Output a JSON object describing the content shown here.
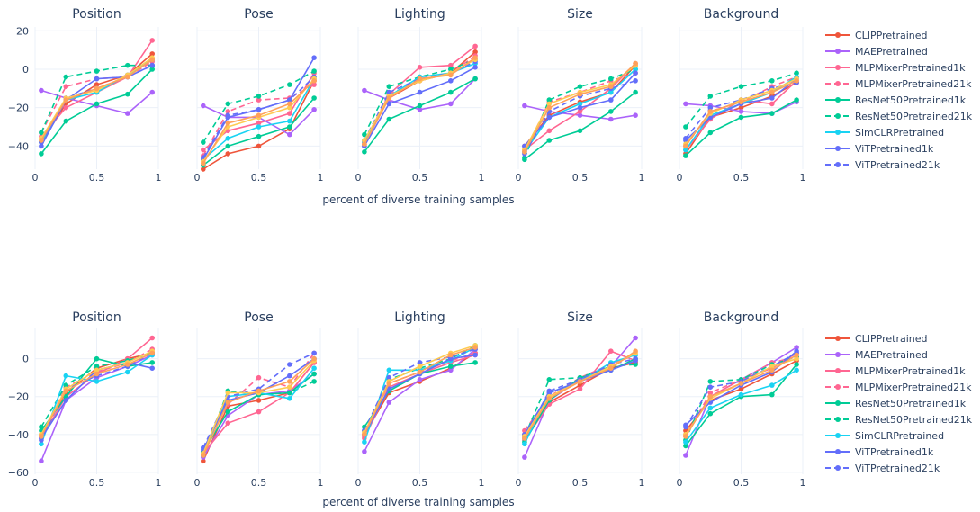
{
  "chart_data": {
    "type": "line",
    "xlabel": "percent of diverse training samples",
    "x_ticks": [
      0,
      0.5,
      1
    ],
    "x_tick_labels": [
      "0",
      "0.5",
      "1"
    ],
    "xlim": [
      0,
      1
    ],
    "x": [
      0.05,
      0.25,
      0.5,
      0.75,
      0.95
    ],
    "panels": [
      "Position",
      "Pose",
      "Lighting",
      "Size",
      "Background"
    ],
    "legend_placement": "right",
    "series_meta": [
      {
        "name": "CLIPPretrained",
        "color": "#ef553b",
        "dash": "solid"
      },
      {
        "name": "MAEPretrained",
        "color": "#ab63fa",
        "dash": "solid"
      },
      {
        "name": "MLPMixerPretrained1k",
        "color": "#ff6692",
        "dash": "solid"
      },
      {
        "name": "MLPMixerPretrained21k",
        "color": "#ff6692",
        "dash": "dash"
      },
      {
        "name": "ResNet50Pretrained1k",
        "color": "#00cc96",
        "dash": "solid"
      },
      {
        "name": "ResNet50Pretrained21k",
        "color": "#00cc96",
        "dash": "dash"
      },
      {
        "name": "SimCLRPretrained",
        "color": "#19d3f3",
        "dash": "solid"
      },
      {
        "name": "ViTPretrained1k",
        "color": "#636efa",
        "dash": "solid"
      },
      {
        "name": "ViTPretrained21k",
        "color": "#636efa",
        "dash": "dash"
      },
      {
        "name": "",
        "color": "#fecb52",
        "dash": "solid"
      },
      {
        "name": "",
        "color": "#ffa15a",
        "dash": "solid"
      }
    ],
    "rows": [
      {
        "ylim": [
          -52,
          22
        ],
        "y_ticks": [
          20,
          0,
          -20,
          -40
        ],
        "y_tick_labels": [
          "20",
          "0",
          "−20",
          "−40"
        ],
        "legend": [
          "CLIPPretrained",
          "MAEPretrained",
          "MLPMixerPretrained1k",
          "MLPMixerPretrained21k",
          "ResNet50Pretrained1k",
          "ResNet50Pretrained21k",
          "SimCLRPretrained",
          "ViTPretrained1k",
          "ViTPretrained21k"
        ],
        "subplots": [
          {
            "series": [
              [
                -38,
                -18,
                -8,
                -3,
                8
              ],
              [
                -11,
                -15,
                -19,
                -23,
                -12
              ],
              [
                -35,
                -20,
                -12,
                -4,
                15
              ],
              [
                -33,
                -9,
                -5,
                -4,
                4
              ],
              [
                -44,
                -27,
                -18,
                -13,
                0
              ],
              [
                -33,
                -4,
                -1,
                2,
                2
              ],
              [
                -38,
                -16,
                -12,
                -3,
                5
              ],
              [
                -40,
                -16,
                -5,
                -4,
                2
              ],
              [
                -38,
                -15,
                -10,
                -4,
                2
              ],
              [
                -36,
                -15,
                -11,
                -3,
                6
              ],
              [
                -37,
                -16,
                -10,
                -4,
                5
              ]
            ]
          },
          {
            "series": [
              [
                -52,
                -44,
                -40,
                -31,
                -6
              ],
              [
                -19,
                -25,
                -25,
                -34,
                -21
              ],
              [
                -42,
                -32,
                -28,
                -23,
                -2
              ],
              [
                -45,
                -22,
                -16,
                -15,
                -8
              ],
              [
                -50,
                -40,
                -35,
                -30,
                -15
              ],
              [
                -38,
                -18,
                -14,
                -8,
                -1
              ],
              [
                -47,
                -36,
                -30,
                -27,
                -5
              ],
              [
                -47,
                -25,
                -21,
                -16,
                6
              ],
              [
                -46,
                -24,
                -21,
                -16,
                -4
              ],
              [
                -48,
                -30,
                -25,
                -20,
                -5
              ],
              [
                -49,
                -28,
                -24,
                -18,
                -6
              ]
            ]
          },
          {
            "series": [
              [
                -39,
                -15,
                -6,
                -2,
                9
              ],
              [
                -11,
                -16,
                -21,
                -18,
                -5
              ],
              [
                -40,
                -13,
                1,
                2,
                12
              ],
              [
                -38,
                -13,
                -6,
                -2,
                7
              ],
              [
                -43,
                -26,
                -19,
                -12,
                -5
              ],
              [
                -34,
                -9,
                -4,
                0,
                5
              ],
              [
                -38,
                -14,
                -4,
                -2,
                3
              ],
              [
                -40,
                -18,
                -12,
                -6,
                1
              ],
              [
                -37,
                -12,
                -5,
                -2,
                4
              ],
              [
                -37,
                -14,
                -6,
                -2,
                5
              ],
              [
                -39,
                -15,
                -5,
                -3,
                6
              ]
            ]
          },
          {
            "series": [
              [
                -40,
                -24,
                -17,
                -12,
                2
              ],
              [
                -19,
                -22,
                -24,
                -26,
                -24
              ],
              [
                -42,
                -32,
                -22,
                -10,
                3
              ],
              [
                -43,
                -17,
                -12,
                -6,
                -2
              ],
              [
                -47,
                -37,
                -32,
                -22,
                -12
              ],
              [
                -46,
                -16,
                -9,
                -5,
                0
              ],
              [
                -43,
                -25,
                -18,
                -12,
                0
              ],
              [
                -40,
                -25,
                -20,
                -16,
                -2
              ],
              [
                -44,
                -22,
                -14,
                -10,
                -6
              ],
              [
                -42,
                -18,
                -12,
                -8,
                2
              ],
              [
                -43,
                -20,
                -13,
                -9,
                3
              ]
            ]
          },
          {
            "series": [
              [
                -44,
                -25,
                -20,
                -14,
                -7
              ],
              [
                -18,
                -19,
                -22,
                -23,
                -17
              ],
              [
                -42,
                -26,
                -16,
                -18,
                -6
              ],
              [
                -40,
                -22,
                -17,
                -9,
                -4
              ],
              [
                -45,
                -33,
                -25,
                -23,
                -16
              ],
              [
                -30,
                -14,
                -9,
                -6,
                -2
              ],
              [
                -42,
                -24,
                -18,
                -12,
                -4
              ],
              [
                -37,
                -25,
                -18,
                -15,
                -5
              ],
              [
                -36,
                -20,
                -16,
                -10,
                -7
              ],
              [
                -39,
                -23,
                -16,
                -11,
                -5
              ],
              [
                -40,
                -22,
                -17,
                -12,
                -6
              ]
            ]
          }
        ]
      },
      {
        "ylim": [
          -61,
          16
        ],
        "y_ticks": [
          0,
          -20,
          -40,
          -60
        ],
        "y_tick_labels": [
          "0",
          "−20",
          "−40",
          "−60"
        ],
        "legend": [
          "CLIPPretrained",
          "MAEPretrained",
          "MLPMixerPretrained1k",
          "MLPMixerPretrained21k",
          "ResNet50Pretrained1k",
          "ResNet50Pretrained21k",
          "SimCLRPretrained",
          "ViTPretrained1k",
          "ViTPretrained21k"
        ],
        "subplots": [
          {
            "series": [
              [
                -40,
                -18,
                -5,
                0,
                3
              ],
              [
                -54,
                -22,
                -10,
                -4,
                2
              ],
              [
                -42,
                -20,
                -8,
                0,
                11
              ],
              [
                -41,
                -15,
                -7,
                -2,
                5
              ],
              [
                -38,
                -20,
                0,
                -4,
                -2
              ],
              [
                -36,
                -14,
                -4,
                -1,
                3
              ],
              [
                -45,
                -9,
                -12,
                -7,
                2
              ],
              [
                -42,
                -22,
                -6,
                -2,
                -5
              ],
              [
                -43,
                -16,
                -9,
                -4,
                3
              ],
              [
                -40,
                -16,
                -6,
                -2,
                4
              ],
              [
                -41,
                -17,
                -8,
                -3,
                3
              ]
            ]
          },
          {
            "series": [
              [
                -54,
                -25,
                -22,
                -18,
                -2
              ],
              [
                -52,
                -30,
                -19,
                -17,
                -8
              ],
              [
                -50,
                -34,
                -28,
                -18,
                -2
              ],
              [
                -49,
                -24,
                -10,
                -15,
                3
              ],
              [
                -49,
                -28,
                -19,
                -18,
                -8
              ],
              [
                -51,
                -17,
                -19,
                -18,
                -12
              ],
              [
                -50,
                -20,
                -18,
                -21,
                -5
              ],
              [
                -48,
                -22,
                -18,
                -9,
                0
              ],
              [
                -47,
                -20,
                -16,
                -3,
                3
              ],
              [
                -50,
                -18,
                -18,
                -15,
                -1
              ],
              [
                -51,
                -23,
                -17,
                -12,
                0
              ]
            ]
          },
          {
            "series": [
              [
                -40,
                -18,
                -12,
                -5,
                3
              ],
              [
                -49,
                -23,
                -11,
                -6,
                5
              ],
              [
                -42,
                -15,
                -8,
                -2,
                2
              ],
              [
                -41,
                -13,
                -7,
                -1,
                3
              ],
              [
                -36,
                -17,
                -8,
                -4,
                -2
              ],
              [
                -38,
                -11,
                -5,
                0,
                7
              ],
              [
                -44,
                -6,
                -6,
                -1,
                6
              ],
              [
                -40,
                -16,
                -8,
                0,
                2
              ],
              [
                -38,
                -10,
                -2,
                1,
                5
              ],
              [
                -39,
                -12,
                -4,
                3,
                7
              ],
              [
                -40,
                -13,
                -7,
                2,
                6
              ]
            ]
          },
          {
            "series": [
              [
                -40,
                -23,
                -14,
                -5,
                -2
              ],
              [
                -52,
                -22,
                -11,
                -4,
                11
              ],
              [
                -43,
                -24,
                -16,
                4,
                -1
              ],
              [
                -38,
                -20,
                -10,
                -3,
                2
              ],
              [
                -44,
                -22,
                -10,
                -6,
                0
              ],
              [
                -41,
                -11,
                -10,
                -4,
                -3
              ],
              [
                -45,
                -18,
                -12,
                -2,
                2
              ],
              [
                -40,
                -18,
                -12,
                -6,
                -1
              ],
              [
                -42,
                -17,
                -11,
                -3,
                0
              ],
              [
                -41,
                -20,
                -12,
                -4,
                3
              ],
              [
                -42,
                -21,
                -12,
                -5,
                4
              ]
            ]
          },
          {
            "series": [
              [
                -38,
                -22,
                -16,
                -8,
                -1
              ],
              [
                -51,
                -20,
                -11,
                -2,
                6
              ],
              [
                -40,
                -20,
                -11,
                -5,
                3
              ],
              [
                -41,
                -18,
                -11,
                -2,
                1
              ],
              [
                -46,
                -29,
                -20,
                -19,
                -3
              ],
              [
                -43,
                -12,
                -11,
                -3,
                1
              ],
              [
                -44,
                -26,
                -19,
                -14,
                -6
              ],
              [
                -35,
                -23,
                -14,
                -7,
                4
              ],
              [
                -36,
                -15,
                -12,
                -4,
                3
              ],
              [
                -40,
                -21,
                -13,
                -4,
                0
              ],
              [
                -41,
                -20,
                -13,
                -6,
                2
              ]
            ]
          }
        ]
      }
    ]
  }
}
